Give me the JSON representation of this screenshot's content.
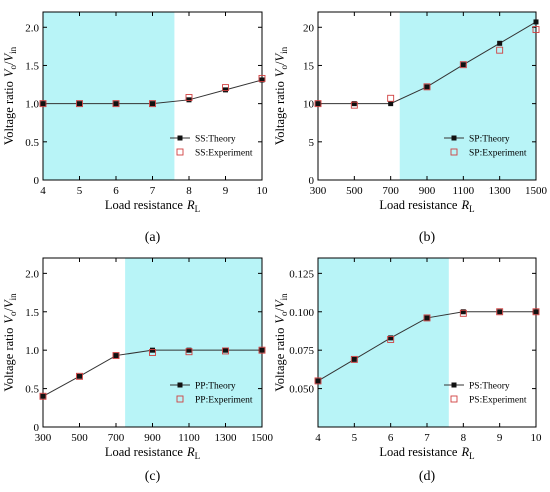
{
  "chart_data": [
    {
      "panel_label": "(a)",
      "type": "line",
      "xlabel": "Load resistance",
      "xlabel_sub": "L",
      "ylabel": "Voltage ratio",
      "ylabel_num": "o",
      "ylabel_den": "in",
      "xlim": [
        4,
        10
      ],
      "ylim": [
        0,
        2.2
      ],
      "xticks": [
        4,
        5,
        6,
        7,
        8,
        9,
        10
      ],
      "xtick_labels": [
        "4",
        "5",
        "6",
        "7",
        "8",
        "9",
        "10"
      ],
      "yticks": [
        0,
        0.5,
        1.0,
        1.5,
        2.0
      ],
      "ytick_labels": [
        "0",
        "0.5",
        "1.0",
        "1.5",
        "2.0"
      ],
      "shaded_region": [
        4,
        7.6
      ],
      "shade_color": "#b8f4f7",
      "grid": false,
      "legend_position": "lower-right",
      "series": [
        {
          "name": "SS:Theory",
          "style": "line-square",
          "x": [
            4,
            5,
            6,
            7,
            8,
            9,
            10
          ],
          "values": [
            1.0,
            1.0,
            1.0,
            1.0,
            1.05,
            1.18,
            1.31
          ]
        },
        {
          "name": "SS:Experiment",
          "style": "open-square",
          "x": [
            4,
            5,
            6,
            7,
            8,
            9,
            10
          ],
          "values": [
            1.0,
            1.0,
            1.0,
            1.0,
            1.08,
            1.21,
            1.33
          ]
        }
      ]
    },
    {
      "panel_label": "(b)",
      "type": "line",
      "xlabel": "Load resistance",
      "xlabel_sub": "L",
      "ylabel": "Voltage ratio",
      "ylabel_num": "o",
      "ylabel_den": "in",
      "xlim": [
        300,
        1500
      ],
      "ylim": [
        0,
        22
      ],
      "xticks": [
        300,
        500,
        700,
        900,
        1100,
        1300,
        1500
      ],
      "xtick_labels": [
        "300",
        "500",
        "700",
        "900",
        "1100",
        "1300",
        "1500"
      ],
      "yticks": [
        0,
        5,
        10,
        15,
        20
      ],
      "ytick_labels": [
        "0",
        "5",
        "10",
        "15",
        "20"
      ],
      "shaded_region": [
        750,
        1500
      ],
      "shade_color": "#b8f4f7",
      "grid": false,
      "legend_position": "lower-right",
      "series": [
        {
          "name": "SP:Theory",
          "style": "line-square",
          "x": [
            300,
            500,
            700,
            900,
            1100,
            1300,
            1500
          ],
          "values": [
            10,
            10,
            10,
            12.2,
            15.1,
            17.9,
            20.7
          ]
        },
        {
          "name": "SP:Experiment",
          "style": "open-square",
          "x": [
            300,
            500,
            700,
            900,
            1100,
            1300,
            1500
          ],
          "values": [
            10,
            9.8,
            10.7,
            12.2,
            15.1,
            17.0,
            19.7
          ]
        }
      ]
    },
    {
      "panel_label": "(c)",
      "type": "line",
      "xlabel": "Load resistance",
      "xlabel_sub": "L",
      "ylabel": "Voltage ratio",
      "ylabel_num": "o",
      "ylabel_den": "in",
      "xlim": [
        300,
        1500
      ],
      "ylim": [
        0,
        2.2
      ],
      "xticks": [
        300,
        500,
        700,
        900,
        1100,
        1300,
        1500
      ],
      "xtick_labels": [
        "300",
        "500",
        "700",
        "900",
        "1100",
        "1300",
        "1500"
      ],
      "yticks": [
        0,
        0.5,
        1.0,
        1.5,
        2.0
      ],
      "ytick_labels": [
        "0",
        "0.5",
        "1.0",
        "1.5",
        "2.0"
      ],
      "shaded_region": [
        750,
        1500
      ],
      "shade_color": "#b8f4f7",
      "grid": false,
      "legend_position": "lower-right",
      "series": [
        {
          "name": "PP:Theory",
          "style": "line-square",
          "x": [
            300,
            500,
            700,
            900,
            1100,
            1300,
            1500
          ],
          "values": [
            0.4,
            0.66,
            0.93,
            1.0,
            1.0,
            1.0,
            1.0
          ]
        },
        {
          "name": "PP:Experiment",
          "style": "open-square",
          "x": [
            300,
            500,
            700,
            900,
            1100,
            1300,
            1500
          ],
          "values": [
            0.4,
            0.66,
            0.93,
            0.97,
            0.98,
            0.99,
            1.0
          ]
        }
      ]
    },
    {
      "panel_label": "(d)",
      "type": "line",
      "xlabel": "Load resistance",
      "xlabel_sub": "L",
      "ylabel": "Voltage ratio",
      "ylabel_num": "o",
      "ylabel_den": "in",
      "xlim": [
        4,
        10
      ],
      "ylim": [
        0.025,
        0.135
      ],
      "xticks": [
        4,
        5,
        6,
        7,
        8,
        9,
        10
      ],
      "xtick_labels": [
        "4",
        "5",
        "6",
        "7",
        "8",
        "9",
        "10"
      ],
      "yticks": [
        0.05,
        0.075,
        0.1,
        0.125
      ],
      "ytick_labels": [
        "0.050",
        "0.075",
        "0.100",
        "0.125"
      ],
      "shaded_region": [
        4,
        7.6
      ],
      "shade_color": "#b8f4f7",
      "grid": false,
      "legend_position": "lower-right",
      "series": [
        {
          "name": "PS:Theory",
          "style": "line-square",
          "x": [
            4,
            5,
            6,
            7,
            8,
            9,
            10
          ],
          "values": [
            0.055,
            0.069,
            0.083,
            0.096,
            0.1,
            0.1,
            0.1
          ]
        },
        {
          "name": "PS:Experiment",
          "style": "open-square",
          "x": [
            4,
            5,
            6,
            7,
            8,
            9,
            10
          ],
          "values": [
            0.055,
            0.069,
            0.082,
            0.096,
            0.099,
            0.1,
            0.1
          ]
        }
      ]
    }
  ]
}
